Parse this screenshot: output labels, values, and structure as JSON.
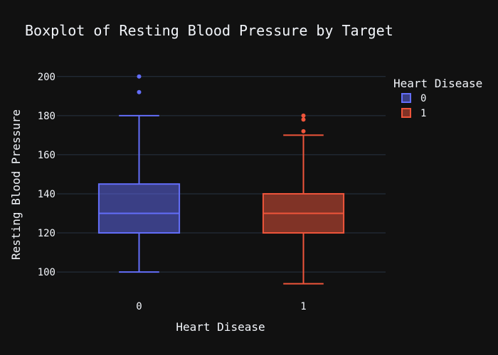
{
  "colors": {
    "background": "#111111",
    "grid": "#283442",
    "text": "#f2f5fa",
    "series_0": "#636efa",
    "series_1": "#ef553b"
  },
  "chart_data": {
    "type": "box",
    "title": "Boxplot of Resting Blood Pressure by Target",
    "xlabel": "Heart Disease",
    "ylabel": "Resting Blood Pressure",
    "ylim": [
      89.5,
      205
    ],
    "yticks": [
      100,
      120,
      140,
      160,
      180,
      200
    ],
    "grid": true,
    "legend": {
      "title": "Heart Disease",
      "position": "top-right"
    },
    "categories": [
      "0",
      "1"
    ],
    "series": [
      {
        "name": "0",
        "category": "0",
        "min": 100,
        "q1": 120,
        "median": 130,
        "q3": 145,
        "max": 180,
        "outliers": [
          192,
          200
        ]
      },
      {
        "name": "1",
        "category": "1",
        "min": 94,
        "q1": 120,
        "median": 130,
        "q3": 140,
        "max": 170,
        "outliers": [
          172,
          178,
          180
        ]
      }
    ]
  }
}
